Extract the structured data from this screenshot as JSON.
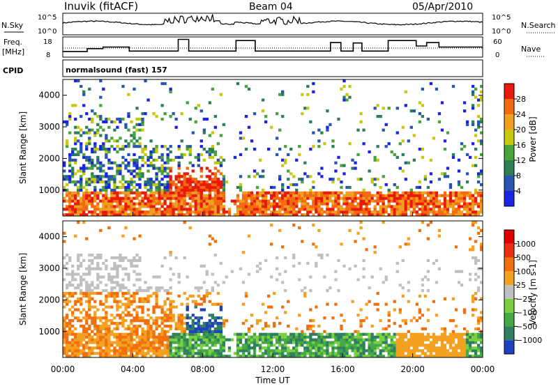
{
  "header": {
    "station": "Inuvik (fitACF)",
    "beam": "Beam 04",
    "date": "05/Apr/2010"
  },
  "top_panels": {
    "nsky": {
      "left_label": "N.Sky",
      "right_label": "N.Search",
      "tick_top": "10^5",
      "tick_bottom": "10^0",
      "right_tick_top": "10^5",
      "right_tick_bottom": "10^0"
    },
    "freq": {
      "left_label_1": "Freq.",
      "left_label_2": "[MHz]",
      "tick_top": "18",
      "tick_bottom": "8",
      "right_label": "Nave",
      "right_tick_top": "60",
      "right_tick_bottom": "0"
    },
    "cpid": {
      "left_label": "CPID",
      "mode_text": "normalsound (fast) 157"
    }
  },
  "chart_data": [
    {
      "type": "heatmap",
      "name": "power",
      "ylabel": "Slant Range [km]",
      "y_ticks": [
        "1000",
        "2000",
        "3000",
        "4000"
      ],
      "colorbar_label": "Power [dB]",
      "colorbar_ticks": [
        "4",
        "8",
        "12",
        "16",
        "20",
        "24",
        "28"
      ],
      "colorbar_colors": [
        "#1a23e6",
        "#2a55b0",
        "#2f7f55",
        "#4aa43e",
        "#c8c80f",
        "#f0a020",
        "#f46a10",
        "#e81a0a"
      ]
    },
    {
      "type": "heatmap",
      "name": "velocity",
      "ylabel": "Slant Range [km]",
      "y_ticks": [
        "1000",
        "2000",
        "3000",
        "4000"
      ],
      "colorbar_label": "Velocity [m s-1]",
      "colorbar_ticks": [
        "1000",
        "500",
        "100",
        "25",
        "−25",
        "−100",
        "−500",
        "−1000"
      ],
      "colorbar_colors": [
        "#2040c0",
        "#2f7f60",
        "#44a845",
        "#7bd040",
        "#c0c0c0",
        "#f4a020",
        "#f07010",
        "#e83010",
        "#e00000"
      ]
    }
  ],
  "x_axis": {
    "ticks": [
      "00:00",
      "04:00",
      "08:00",
      "12:00",
      "16:00",
      "20:00",
      "00:00"
    ],
    "label": "Time UT"
  }
}
